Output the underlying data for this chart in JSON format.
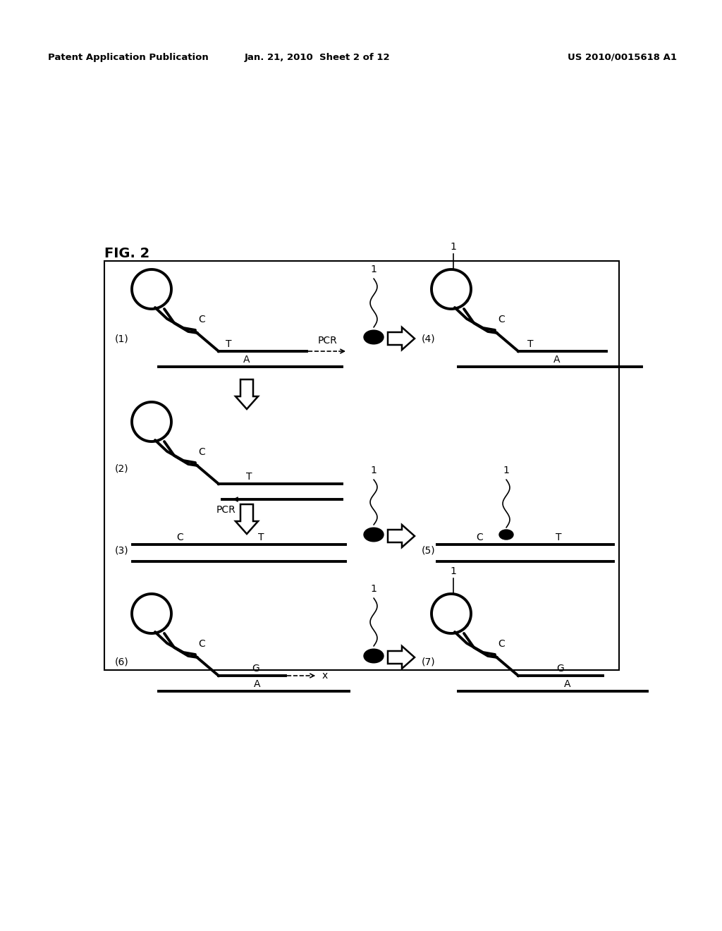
{
  "title": "FIG. 2",
  "header_left": "Patent Application Publication",
  "header_center": "Jan. 21, 2010  Sheet 2 of 12",
  "header_right": "US 2010/0015618 A1",
  "bg_color": "#ffffff"
}
